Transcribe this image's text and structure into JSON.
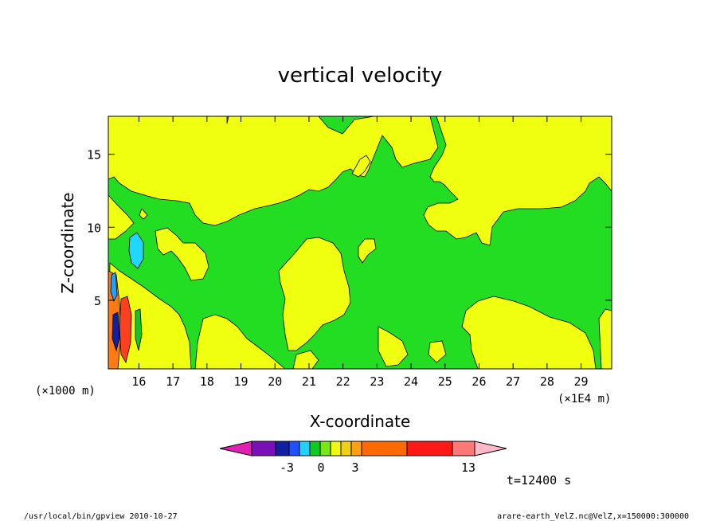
{
  "chart_data": {
    "type": "heatmap",
    "title": "vertical velocity",
    "xlabel": "X-coordinate",
    "ylabel": "Z-coordinate",
    "x_scale_label": "(×1E4 m)",
    "y_scale_label": "(×1000 m)",
    "xlim": [
      15.1,
      29.9
    ],
    "ylim": [
      0.3,
      17.6
    ],
    "x_ticks": [
      16,
      17,
      18,
      19,
      20,
      21,
      22,
      23,
      24,
      25,
      26,
      27,
      28,
      29
    ],
    "y_ticks": [
      5,
      10,
      15
    ],
    "colorbar": {
      "colors": [
        "#e020b0",
        "#7a10b8",
        "#1020a0",
        "#2050ff",
        "#20d0ff",
        "#10c820",
        "#78e818",
        "#f0f810",
        "#f0d010",
        "#ffa010",
        "#ff6a00",
        "#ff1818",
        "#ff7878",
        "#ffb8c8"
      ],
      "tick_labels": [
        "-3",
        "0",
        "3",
        "13"
      ]
    },
    "background_color": "#22dd22",
    "updraft_color": "#f0ff10",
    "time_label": "t=12400 s"
  },
  "footer": {
    "left": "/usr/local/bin/gpview   2010-10-27",
    "right": "arare-earth_VelZ.nc@VelZ,x=150000:300000"
  }
}
